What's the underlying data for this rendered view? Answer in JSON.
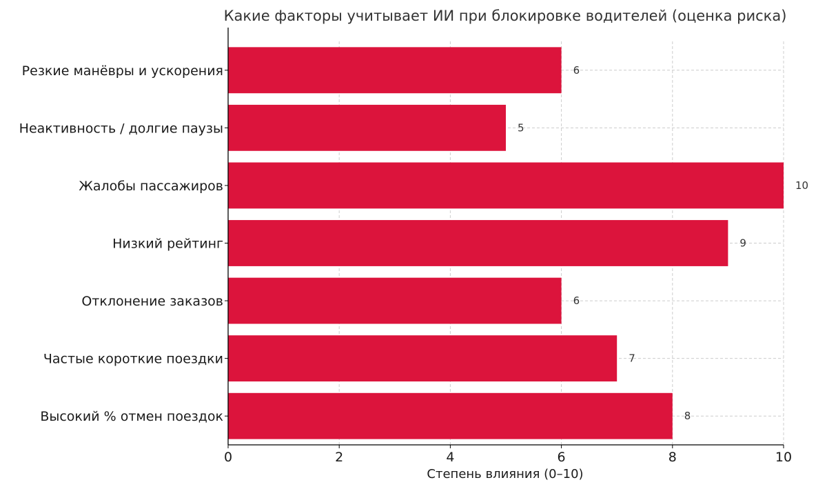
{
  "chart_data": {
    "type": "bar",
    "orientation": "horizontal",
    "title": "Какие факторы учитывает ИИ при блокировке водителей (оценка риска)",
    "xlabel": "Степень влияния (0–10)",
    "ylabel": "",
    "xlim": [
      0,
      10
    ],
    "x_ticks": [
      0,
      2,
      4,
      6,
      8,
      10
    ],
    "grid": true,
    "bar_color": "#DC143C",
    "categories": [
      "Резкие манёвры и ускорения",
      "Неактивность / долгие паузы",
      "Жалобы пассажиров",
      "Низкий рейтинг",
      "Отклонение заказов",
      "Частые короткие поездки",
      "Высокий % отмен поездок"
    ],
    "values": [
      6,
      5,
      10,
      9,
      6,
      7,
      8
    ],
    "data_labels": [
      "6",
      "5",
      "10",
      "9",
      "6",
      "7",
      "8"
    ]
  }
}
